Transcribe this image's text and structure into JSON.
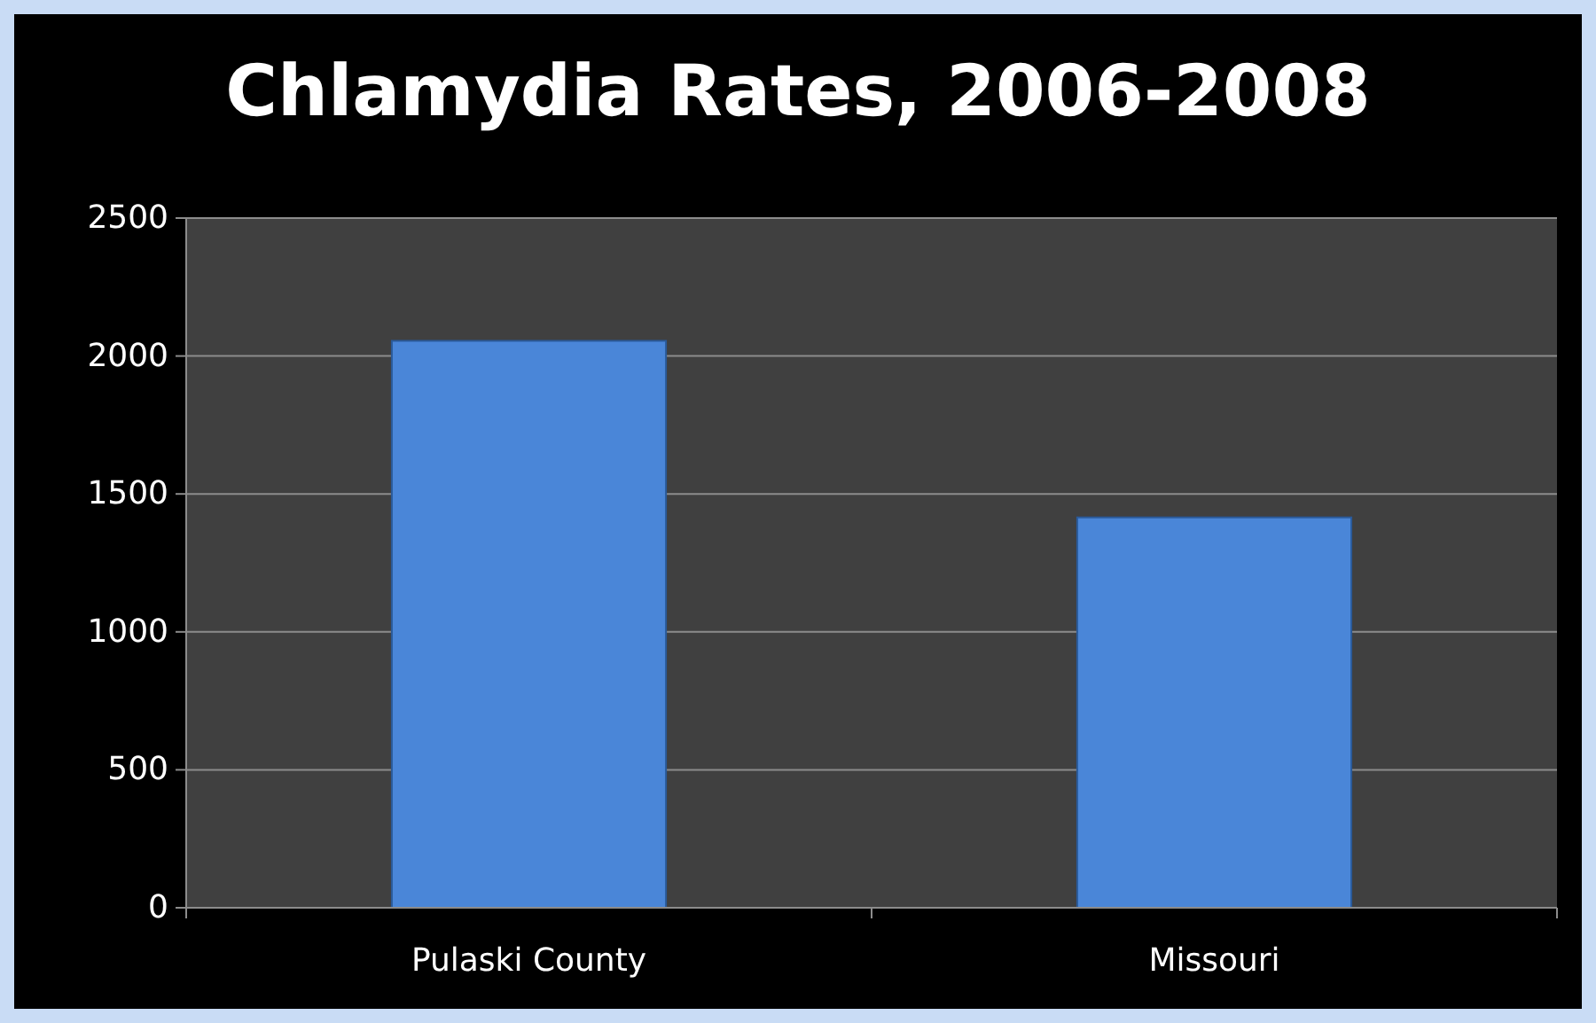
{
  "chart_data": {
    "type": "bar",
    "title": "Chlamydia Rates, 2006-2008",
    "categories": [
      "Pulaski County",
      "Missouri"
    ],
    "values": [
      2055,
      1415
    ],
    "color": "#4a86d8",
    "ylim": [
      0,
      2500
    ],
    "yticks": [
      0,
      500,
      1000,
      1500,
      2000,
      2500
    ],
    "grid": "y"
  }
}
